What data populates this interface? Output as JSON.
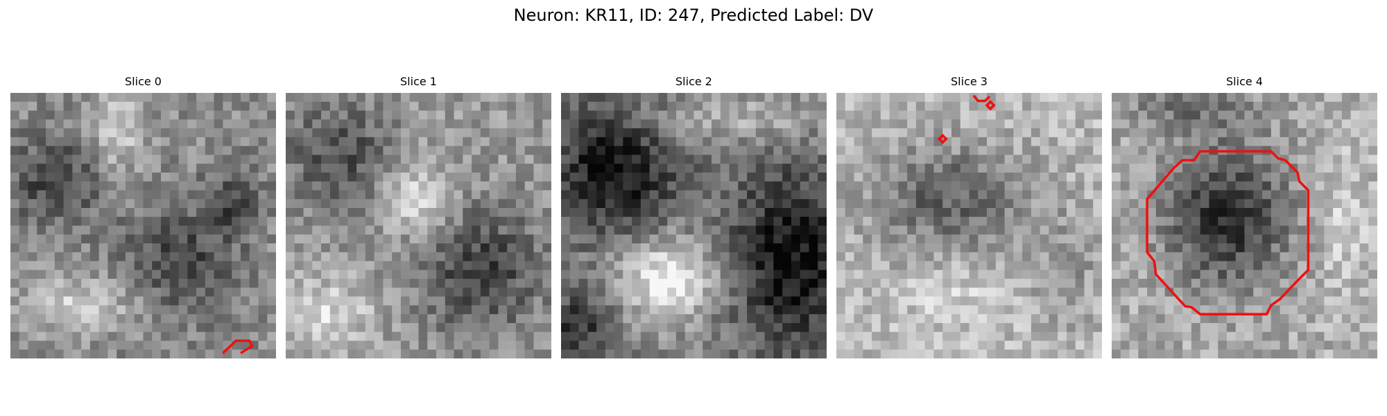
{
  "figure": {
    "title": "Neuron: KR11, ID: 247, Predicted Label: DV"
  },
  "panels": [
    {
      "title": "Slice 0"
    },
    {
      "title": "Slice 1"
    },
    {
      "title": "Slice 2"
    },
    {
      "title": "Slice 3"
    },
    {
      "title": "Slice 4"
    }
  ],
  "colors": {
    "contour": "#ee1111",
    "background": "#ffffff"
  }
}
